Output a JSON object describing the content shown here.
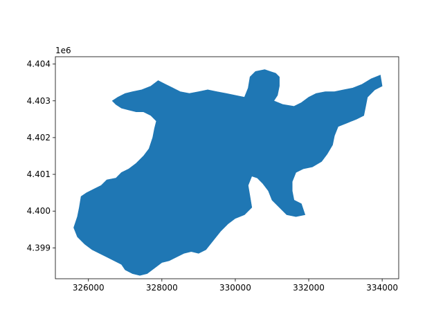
{
  "chart_data": {
    "type": "map",
    "title": "",
    "xlabel": "",
    "ylabel": "",
    "y_offset_label": "1e6",
    "xlim": [
      325100,
      334450
    ],
    "ylim": [
      4398160,
      4404200
    ],
    "x_ticks": [
      {
        "value": 326000,
        "label": "326000"
      },
      {
        "value": 328000,
        "label": "328000"
      },
      {
        "value": 330000,
        "label": "330000"
      },
      {
        "value": 332000,
        "label": "332000"
      },
      {
        "value": 334000,
        "label": "334000"
      }
    ],
    "y_ticks": [
      {
        "value": 4399000,
        "label": "4.399"
      },
      {
        "value": 4400000,
        "label": "4.400"
      },
      {
        "value": 4401000,
        "label": "4.401"
      },
      {
        "value": 4402000,
        "label": "4.402"
      },
      {
        "value": 4403000,
        "label": "4.403"
      },
      {
        "value": 4404000,
        "label": "4.404"
      }
    ],
    "fill_color": "#1f77b4",
    "grid": false,
    "region_outline": [
      [
        325600,
        4399550
      ],
      [
        325700,
        4399850
      ],
      [
        325750,
        4400100
      ],
      [
        325800,
        4400400
      ],
      [
        325950,
        4400500
      ],
      [
        326150,
        4400600
      ],
      [
        326350,
        4400700
      ],
      [
        326500,
        4400850
      ],
      [
        326750,
        4400900
      ],
      [
        326900,
        4401050
      ],
      [
        327100,
        4401150
      ],
      [
        327300,
        4401300
      ],
      [
        327500,
        4401500
      ],
      [
        327650,
        4401700
      ],
      [
        327750,
        4402000
      ],
      [
        327800,
        4402250
      ],
      [
        327850,
        4402450
      ],
      [
        327700,
        4402600
      ],
      [
        327500,
        4402700
      ],
      [
        327300,
        4402700
      ],
      [
        327100,
        4402750
      ],
      [
        326900,
        4402800
      ],
      [
        326750,
        4402900
      ],
      [
        326650,
        4403000
      ],
      [
        326800,
        4403100
      ],
      [
        327000,
        4403200
      ],
      [
        327200,
        4403250
      ],
      [
        327450,
        4403300
      ],
      [
        327700,
        4403400
      ],
      [
        327900,
        4403550
      ],
      [
        328100,
        4403450
      ],
      [
        328300,
        4403350
      ],
      [
        328500,
        4403250
      ],
      [
        328750,
        4403200
      ],
      [
        329000,
        4403250
      ],
      [
        329250,
        4403300
      ],
      [
        329500,
        4403250
      ],
      [
        329750,
        4403200
      ],
      [
        330000,
        4403150
      ],
      [
        330250,
        4403100
      ],
      [
        330350,
        4403350
      ],
      [
        330400,
        4403650
      ],
      [
        330550,
        4403800
      ],
      [
        330800,
        4403850
      ],
      [
        330950,
        4403800
      ],
      [
        331100,
        4403750
      ],
      [
        331200,
        4403650
      ],
      [
        331200,
        4403400
      ],
      [
        331150,
        4403150
      ],
      [
        331050,
        4403000
      ],
      [
        331300,
        4402900
      ],
      [
        331600,
        4402850
      ],
      [
        331800,
        4402950
      ],
      [
        332000,
        4403100
      ],
      [
        332200,
        4403200
      ],
      [
        332450,
        4403250
      ],
      [
        332700,
        4403250
      ],
      [
        332950,
        4403300
      ],
      [
        333200,
        4403350
      ],
      [
        333450,
        4403450
      ],
      [
        333700,
        4403600
      ],
      [
        333950,
        4403700
      ],
      [
        334000,
        4403400
      ],
      [
        333800,
        4403300
      ],
      [
        333600,
        4403100
      ],
      [
        333550,
        4402850
      ],
      [
        333500,
        4402600
      ],
      [
        333300,
        4402500
      ],
      [
        333050,
        4402400
      ],
      [
        332800,
        4402300
      ],
      [
        332700,
        4402050
      ],
      [
        332650,
        4401800
      ],
      [
        332500,
        4401550
      ],
      [
        332350,
        4401350
      ],
      [
        332100,
        4401200
      ],
      [
        331850,
        4401150
      ],
      [
        331650,
        4401050
      ],
      [
        331550,
        4400800
      ],
      [
        331550,
        4400550
      ],
      [
        331600,
        4400300
      ],
      [
        331800,
        4400200
      ],
      [
        331900,
        4399900
      ],
      [
        331650,
        4399850
      ],
      [
        331400,
        4399900
      ],
      [
        331200,
        4400100
      ],
      [
        331000,
        4400300
      ],
      [
        330900,
        4400550
      ],
      [
        330750,
        4400750
      ],
      [
        330600,
        4400900
      ],
      [
        330450,
        4400950
      ],
      [
        330350,
        4400700
      ],
      [
        330400,
        4400400
      ],
      [
        330450,
        4400100
      ],
      [
        330250,
        4399900
      ],
      [
        330000,
        4399800
      ],
      [
        329800,
        4399650
      ],
      [
        329600,
        4399450
      ],
      [
        329400,
        4399200
      ],
      [
        329200,
        4398950
      ],
      [
        329000,
        4398850
      ],
      [
        328800,
        4398900
      ],
      [
        328600,
        4398850
      ],
      [
        328400,
        4398750
      ],
      [
        328200,
        4398650
      ],
      [
        328000,
        4398600
      ],
      [
        327800,
        4398450
      ],
      [
        327600,
        4398300
      ],
      [
        327400,
        4398250
      ],
      [
        327200,
        4398300
      ],
      [
        327000,
        4398400
      ],
      [
        326900,
        4398550
      ],
      [
        326700,
        4398650
      ],
      [
        326500,
        4398750
      ],
      [
        326300,
        4398850
      ],
      [
        326100,
        4398950
      ],
      [
        325900,
        4399100
      ],
      [
        325700,
        4399300
      ]
    ]
  }
}
